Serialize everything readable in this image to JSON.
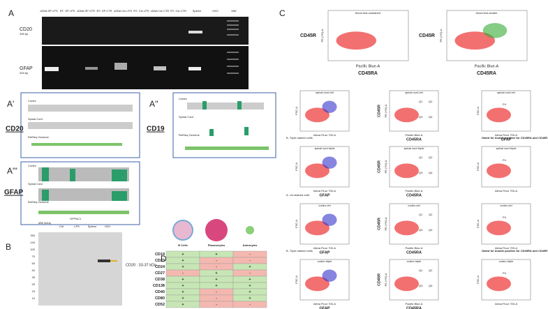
{
  "panel_a": {
    "letter": "A",
    "lanes": [
      "cDNA SP LPS",
      "RT- SP LPS",
      "cDNA SP CTR",
      "RT- SP CTR",
      "cDNA Ctx LPS",
      "RT- Ctx LPS",
      "cDNA Ctx CTR",
      "RT- Ctx CTR",
      "Spleen",
      "H2O",
      "MW"
    ],
    "gel1_label": "CD20",
    "gel1_size": "335 bp",
    "gel2_label": "GFAP",
    "gel2_size": "333 bp"
  },
  "panel_a1": {
    "letter": "A'",
    "gene": "CD20",
    "tracks": [
      "Cortex",
      "Spinal Cord",
      "RefSeq Genome"
    ]
  },
  "panel_a2": {
    "letter": "A''",
    "gene": "CD19",
    "tracks": [
      "Cortex",
      "Spinal Cord",
      "RefSeq Genome"
    ]
  },
  "panel_a3": {
    "letter": "A'''",
    "gene": "GFAP",
    "tracks": [
      "Cortex",
      "Spinal Cord",
      "RefSeq Genome"
    ]
  },
  "panel_b": {
    "letter": "B",
    "mw_header": "MW (kDa)",
    "group": "OFPNC1",
    "lanes": [
      "Ctrl",
      "LPS",
      "Spleen",
      "H2O"
    ],
    "mw": [
      "260",
      "140",
      "100",
      "70",
      "50",
      "40",
      "35",
      "25",
      "15",
      "10"
    ],
    "note": "CD20 : 33-37 kDa"
  },
  "panel_c": {
    "letter": "C",
    "top": [
      {
        "title": "blood test-unstained"
      },
      {
        "title": "blood test-double"
      }
    ],
    "cd45r": "CD45R",
    "cd45ra": "CD45RA",
    "gfap": "GFAP",
    "pacific": "Pacific Blue-A",
    "pe": "PE (YG)-A",
    "alexa": "Alexa Fluor 700-A",
    "fsc": "FSC-A",
    "rows": [
      {
        "heading": null,
        "title": "spinal cord ctrl",
        "note": null
      },
      {
        "heading": "B. Triple stained cells",
        "title": "spinal cord triple",
        "note": "Gated for double positive for CD45RA and CD45R"
      },
      {
        "heading": "A. Un-stained cells",
        "title": "codex-ctrl",
        "note": null
      },
      {
        "heading": "B. Triple stained cells",
        "title": "codex-triple",
        "note": "Gated for double positive for CD45RA and CD45R"
      }
    ],
    "gates": [
      "Q1",
      "Q2",
      "Q3",
      "Q4",
      "P4"
    ]
  },
  "panel_d": {
    "letter": "D",
    "columns": [
      "B Cells",
      "Plasmocytes",
      "Astrocytes"
    ],
    "rows": [
      [
        "CD19",
        "+",
        "+",
        "-"
      ],
      [
        "CD23",
        "+",
        "-",
        "-"
      ],
      [
        "CD24",
        "+",
        "-",
        "+"
      ],
      [
        "CD27",
        "-",
        "+",
        "-"
      ],
      [
        "CD38",
        "+",
        "+",
        "+"
      ],
      [
        "CD138",
        "+",
        "+",
        "+"
      ],
      [
        "CD40",
        "+",
        "-",
        "+"
      ],
      [
        "CD80",
        "+",
        "-",
        "+"
      ],
      [
        "CD52",
        "+",
        "-",
        "-"
      ]
    ]
  }
}
